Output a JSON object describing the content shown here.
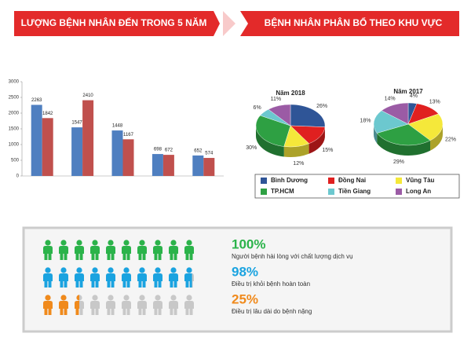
{
  "header": {
    "left": "LƯỢNG BỆNH NHÂN ĐẾN TRONG 5 NĂM",
    "right": "BỆNH NHÂN PHÂN BỔ THEO KHU VỰC"
  },
  "chart_data": [
    {
      "type": "bar",
      "categories": [
        null,
        null,
        null,
        null,
        null
      ],
      "series": [
        {
          "color": "#4f7fc0",
          "values": [
            2263,
            1547,
            1448,
            698,
            652
          ]
        },
        {
          "color": "#c0504d",
          "values": [
            1842,
            2410,
            1167,
            672,
            574
          ]
        }
      ],
      "ylim": [
        0,
        3000
      ],
      "yticks": [
        0,
        500,
        1000,
        1500,
        2000,
        2500,
        3000
      ]
    },
    {
      "type": "pie",
      "categories": [
        "Bình Dương",
        "Đồng Nai",
        "Vũng Tàu",
        "TP.HCM",
        "Tiền Giang",
        "Long An"
      ],
      "colors": [
        "#2f5597",
        "#e02020",
        "#f5e83a",
        "#2ea043",
        "#6cc8cf",
        "#9b5ba5"
      ],
      "pies": [
        {
          "title": "Năm 2018",
          "values": [
            26,
            15,
            12,
            30,
            6,
            11
          ],
          "value_labels": [
            "26%",
            "15%",
            "12%",
            "30%",
            "6%",
            "11%"
          ]
        },
        {
          "title": "Năm 2017",
          "values": [
            4,
            13,
            22,
            29,
            18,
            14
          ],
          "value_labels": [
            "4%",
            "13%",
            "22%",
            "29%",
            "18%",
            "14%"
          ]
        }
      ]
    },
    {
      "type": "pictograph",
      "xlim": [
        0,
        100
      ],
      "values": [
        100,
        98,
        25
      ],
      "value_labels": [
        "100%",
        "98%",
        "25%"
      ],
      "colors": [
        "#2bb34a",
        "#1aa3e0",
        "#f08a1c"
      ],
      "captions": [
        "Người bệnh hài lòng với chất lượng dịch vụ",
        "Điều trị khỏi bệnh hoàn toàn",
        "Điều trị lâu dài do bệnh nặng"
      ]
    }
  ]
}
